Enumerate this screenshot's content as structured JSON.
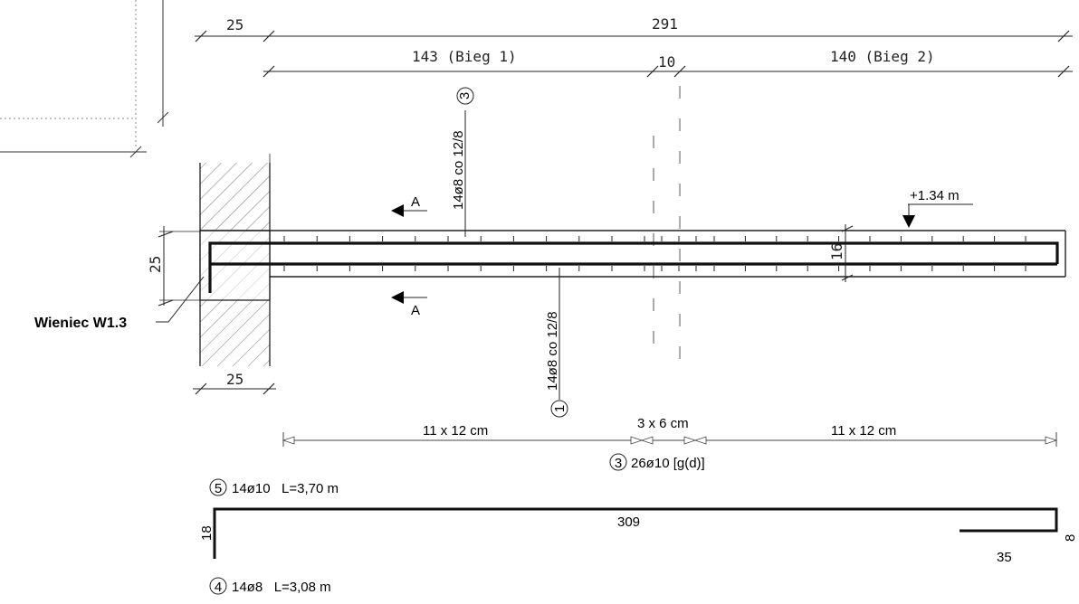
{
  "dimensions": {
    "top_total": "291",
    "left_width": "25",
    "flight1": "143 (Bieg 1)",
    "gap": "10",
    "flight2": "140 (Bieg 2)",
    "wall_height": "25",
    "wall_bottom": "25",
    "slab_thickness": "16",
    "spacing_left": "11 x 12 cm",
    "spacing_mid": "3 x 6 cm",
    "spacing_right": "11 x 12 cm"
  },
  "rebar": {
    "bar3_vertical": "14ø8  co 12/8",
    "bar3_num": "3",
    "bar1_vertical": "14ø8  co 12/8",
    "bar1_num": "1",
    "bar3_dist_num": "3",
    "bar3_dist": "26ø10 [g(d)]",
    "bar5_num": "5",
    "bar5": "14ø10   L=3,70 m",
    "bar4_num": "4",
    "bar4": "14ø8   L=3,08 m"
  },
  "labels": {
    "section_a": "A",
    "level": "+1.34 m",
    "ring_beam": "Wieniec W1.3"
  },
  "bar_shape": {
    "left_leg": "18",
    "length": "309",
    "right_leg": "8",
    "lap": "35"
  }
}
